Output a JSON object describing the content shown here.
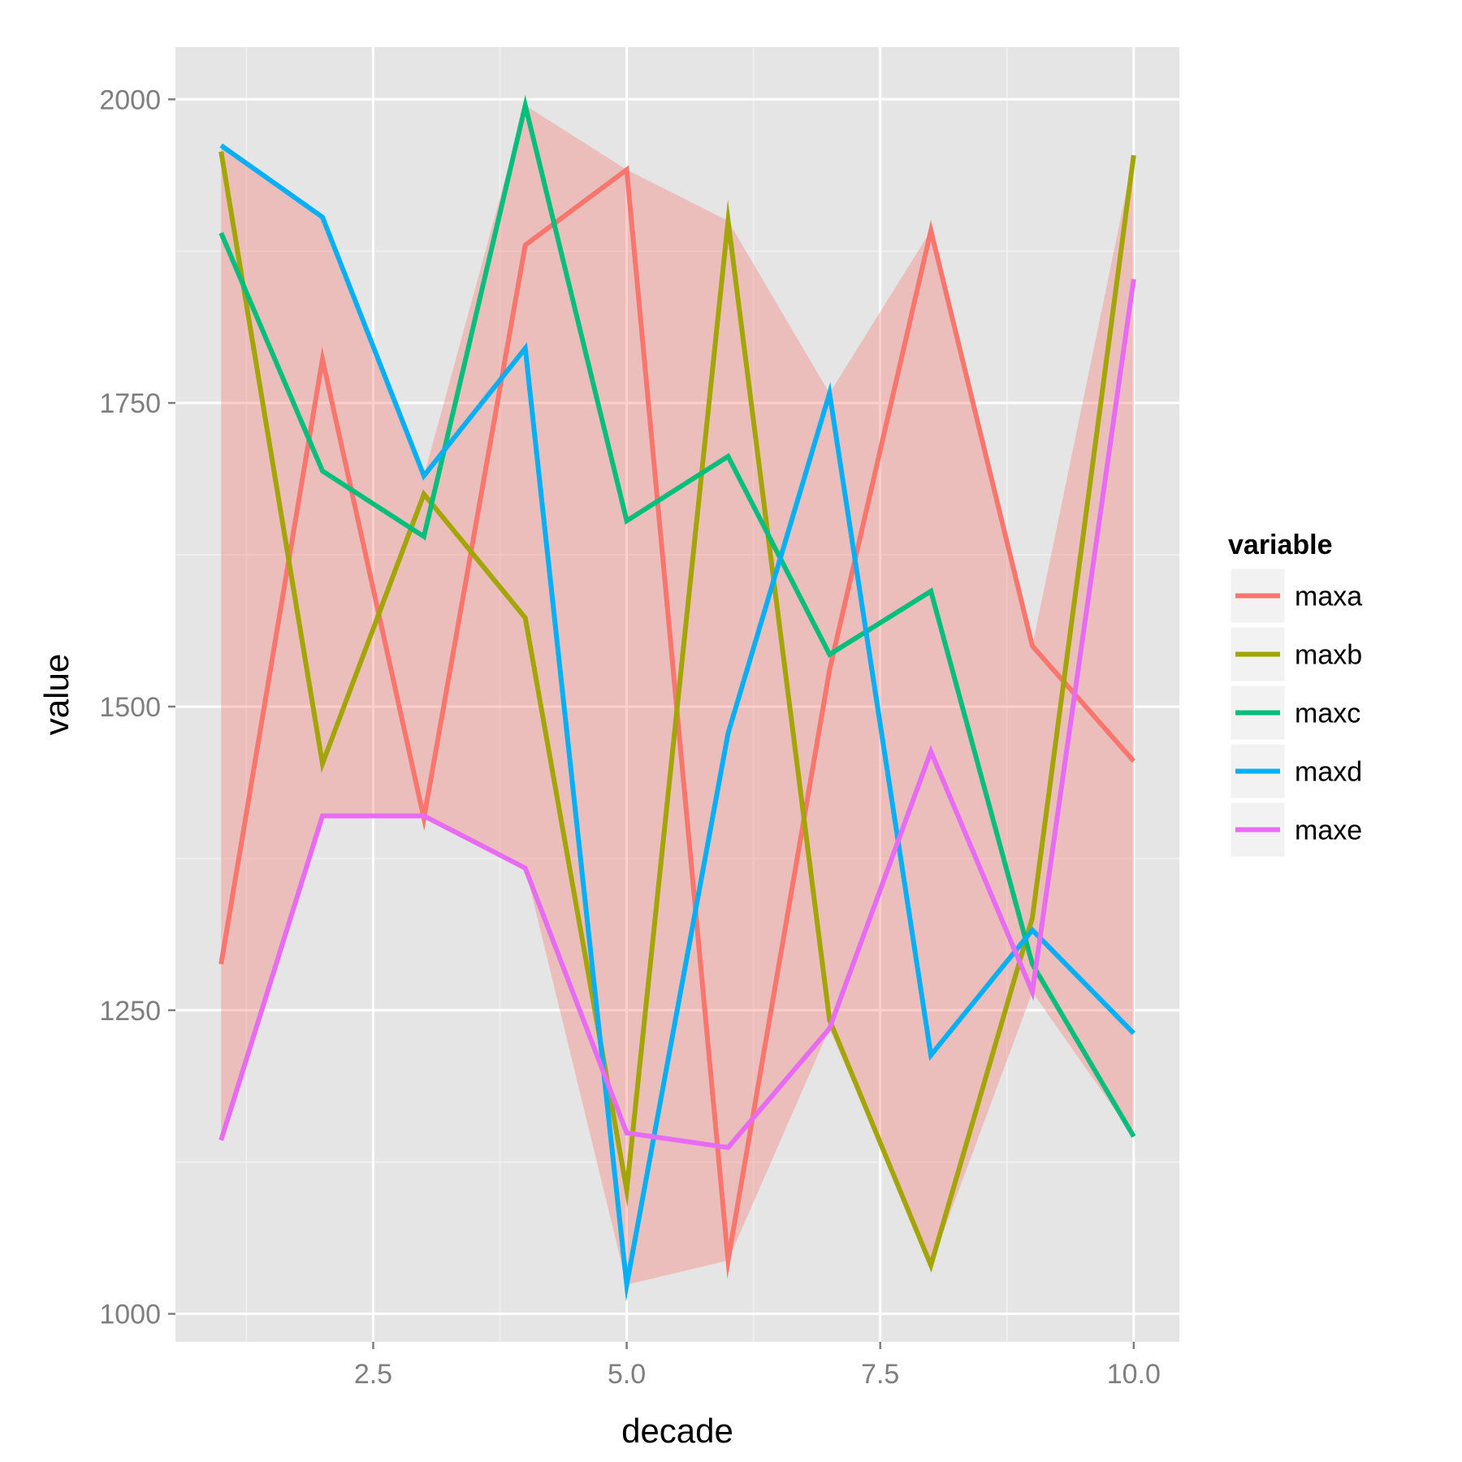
{
  "chart_data": {
    "type": "line",
    "xlabel": "decade",
    "ylabel": "value",
    "xlim": [
      0.55,
      10.45
    ],
    "ylim": [
      977,
      2043
    ],
    "x_ticks": [
      2.5,
      5.0,
      7.5,
      10.0
    ],
    "x_tick_labels": [
      "2.5",
      "5.0",
      "7.5",
      "10.0"
    ],
    "y_ticks": [
      1000,
      1250,
      1500,
      1750,
      2000
    ],
    "y_tick_labels": [
      "1000",
      "1250",
      "1500",
      "1750",
      "2000"
    ],
    "grid": true,
    "legend": {
      "title": "variable",
      "position": "right"
    },
    "x": [
      1,
      2,
      3,
      4,
      5,
      6,
      7,
      8,
      9,
      10
    ],
    "series": [
      {
        "name": "maxa",
        "color": "#F8766D",
        "values": [
          1288,
          1786,
          1408,
          1880,
          1942,
          1044,
          1530,
          1892,
          1550,
          1455
        ]
      },
      {
        "name": "maxb",
        "color": "#A3A500",
        "values": [
          1957,
          1453,
          1675,
          1573,
          1102,
          1900,
          1242,
          1040,
          1326,
          1954
        ]
      },
      {
        "name": "maxc",
        "color": "#00BF7D",
        "values": [
          1890,
          1694,
          1640,
          1995,
          1653,
          1706,
          1543,
          1595,
          1288,
          1146
        ]
      },
      {
        "name": "maxd",
        "color": "#00B0F6",
        "values": [
          1962,
          1903,
          1690,
          1795,
          1024,
          1478,
          1758,
          1213,
          1316,
          1231
        ]
      },
      {
        "name": "maxe",
        "color": "#E76BF3",
        "values": [
          1143,
          1410,
          1410,
          1367,
          1149,
          1137,
          1235,
          1463,
          1265,
          1852
        ]
      }
    ],
    "ribbon": {
      "color": "#F8766D",
      "opacity": 0.35
    }
  }
}
